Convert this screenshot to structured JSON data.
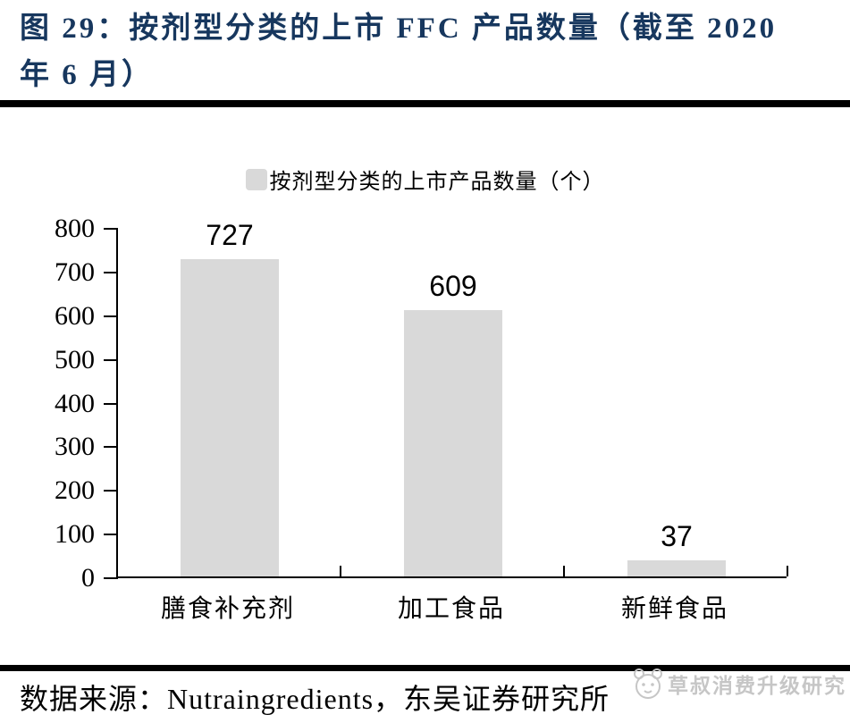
{
  "figure": {
    "title_lines": [
      "图 29：按剂型分类的上市 FFC 产品数量（截至 2020",
      "年 6 月）"
    ],
    "source": "数据来源：Nutraingredients，东吴证券研究所",
    "watermark": "草叔消费升级研究"
  },
  "colors": {
    "title_navy": "#17375E",
    "bar_fill": "#D9D9D9",
    "axis": "#000000",
    "watermark_gray": "#C6C6C6"
  },
  "chart_data": {
    "type": "bar",
    "title": "",
    "legend": [
      {
        "label": "按剂型分类的上市产品数量（个）",
        "swatch_color": "#D9D9D9"
      }
    ],
    "legend_position": "top-center",
    "categories": [
      "膳食补充剂",
      "加工食品",
      "新鲜食品"
    ],
    "values": [
      727,
      609,
      37
    ],
    "data_labels": true,
    "ylim": [
      0,
      800
    ],
    "ytick_step": 100,
    "grid": false,
    "bar_color": "#D9D9D9",
    "axis_ticks": {
      "y": "outside",
      "x": "inside-boundaries"
    }
  }
}
